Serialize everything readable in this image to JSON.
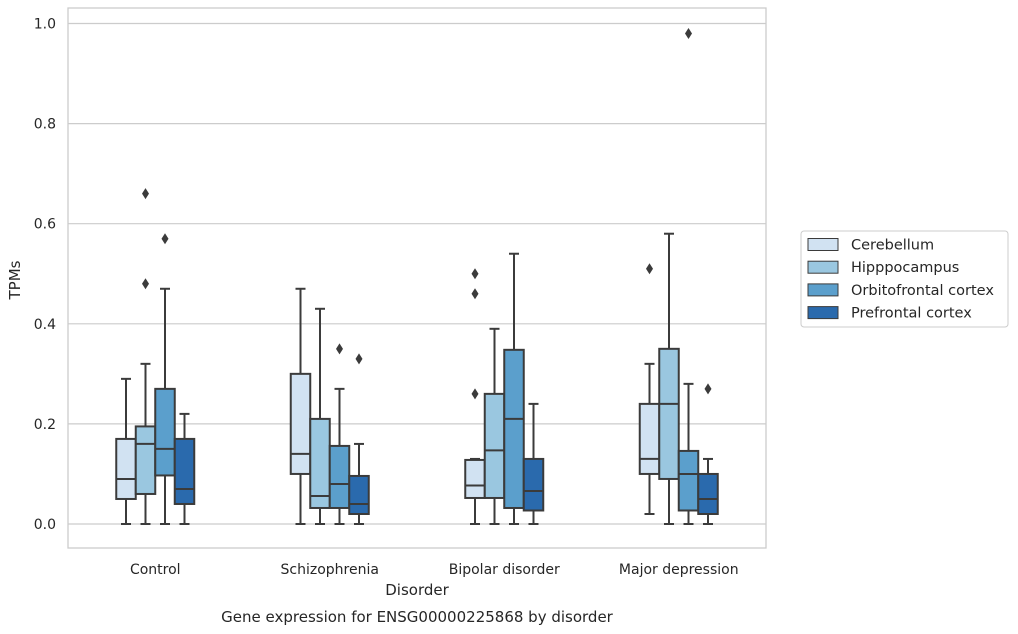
{
  "chart_data": {
    "type": "box",
    "title": "",
    "caption": "Gene expression for ENSG00000225868 by disorder",
    "xlabel": "Disorder",
    "ylabel": "TPMs",
    "ylim": [
      -0.045,
      1.03
    ],
    "yticks": [
      0.0,
      0.2,
      0.4,
      0.6,
      0.8,
      1.0
    ],
    "ytick_labels": [
      "0.0",
      "0.2",
      "0.4",
      "0.6",
      "0.8",
      "1.0"
    ],
    "grid": "horizontal",
    "legend_position": "center-right",
    "categories": [
      "Control",
      "Schizophrenia",
      "Bipolar disorder",
      "Major depression"
    ],
    "series": [
      {
        "name": "Cerebellum",
        "color": "#d1e2f2",
        "boxes": [
          {
            "whisker_low": 0.0,
            "q1": 0.05,
            "median": 0.09,
            "q3": 0.17,
            "whisker_high": 0.29,
            "outliers": []
          },
          {
            "whisker_low": 0.0,
            "q1": 0.1,
            "median": 0.14,
            "q3": 0.3,
            "whisker_high": 0.47,
            "outliers": []
          },
          {
            "whisker_low": 0.0,
            "q1": 0.052,
            "median": 0.077,
            "q3": 0.128,
            "whisker_high": 0.13,
            "outliers": [
              0.26,
              0.46,
              0.5
            ]
          },
          {
            "whisker_low": 0.02,
            "q1": 0.1,
            "median": 0.13,
            "q3": 0.24,
            "whisker_high": 0.32,
            "outliers": [
              0.51
            ]
          }
        ]
      },
      {
        "name": "Hipppocampus",
        "color": "#9ac7e0",
        "boxes": [
          {
            "whisker_low": 0.0,
            "q1": 0.06,
            "median": 0.16,
            "q3": 0.195,
            "whisker_high": 0.32,
            "outliers": [
              0.48,
              0.66
            ]
          },
          {
            "whisker_low": 0.0,
            "q1": 0.032,
            "median": 0.056,
            "q3": 0.21,
            "whisker_high": 0.43,
            "outliers": []
          },
          {
            "whisker_low": 0.0,
            "q1": 0.052,
            "median": 0.147,
            "q3": 0.26,
            "whisker_high": 0.39,
            "outliers": []
          },
          {
            "whisker_low": 0.0,
            "q1": 0.09,
            "median": 0.24,
            "q3": 0.35,
            "whisker_high": 0.58,
            "outliers": []
          }
        ]
      },
      {
        "name": "Orbitofrontal cortex",
        "color": "#5b9fcc",
        "boxes": [
          {
            "whisker_low": 0.0,
            "q1": 0.097,
            "median": 0.15,
            "q3": 0.27,
            "whisker_high": 0.47,
            "outliers": [
              0.57
            ]
          },
          {
            "whisker_low": 0.0,
            "q1": 0.032,
            "median": 0.08,
            "q3": 0.156,
            "whisker_high": 0.27,
            "outliers": [
              0.35
            ]
          },
          {
            "whisker_low": 0.0,
            "q1": 0.032,
            "median": 0.21,
            "q3": 0.348,
            "whisker_high": 0.54,
            "outliers": []
          },
          {
            "whisker_low": 0.0,
            "q1": 0.027,
            "median": 0.1,
            "q3": 0.146,
            "whisker_high": 0.28,
            "outliers": [
              0.98
            ]
          }
        ]
      },
      {
        "name": "Prefrontal cortex",
        "color": "#2a6aad",
        "boxes": [
          {
            "whisker_low": 0.0,
            "q1": 0.04,
            "median": 0.07,
            "q3": 0.17,
            "whisker_high": 0.22,
            "outliers": []
          },
          {
            "whisker_low": 0.0,
            "q1": 0.02,
            "median": 0.04,
            "q3": 0.096,
            "whisker_high": 0.16,
            "outliers": [
              0.33
            ]
          },
          {
            "whisker_low": 0.0,
            "q1": 0.027,
            "median": 0.066,
            "q3": 0.13,
            "whisker_high": 0.24,
            "outliers": []
          },
          {
            "whisker_low": 0.0,
            "q1": 0.02,
            "median": 0.05,
            "q3": 0.1,
            "whisker_high": 0.13,
            "outliers": [
              0.27
            ]
          }
        ]
      }
    ]
  }
}
